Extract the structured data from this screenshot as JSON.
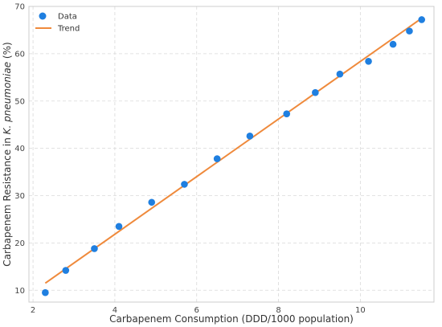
{
  "chart_data": {
    "type": "scatter",
    "xlabel": "Carbapenem Consumption (DDD/1000 population)",
    "ylabel_prefix": "Carbapenem Resistance in ",
    "ylabel_italic": "K. pneumoniae",
    "ylabel_suffix": " (%)",
    "xlim": [
      1.9,
      11.8
    ],
    "ylim": [
      7.5,
      70
    ],
    "xticks": [
      2,
      4,
      6,
      8,
      10
    ],
    "yticks": [
      10,
      20,
      30,
      40,
      50,
      60,
      70
    ],
    "grid": true,
    "legend_position": "top-left",
    "series": [
      {
        "name": "Data",
        "kind": "scatter",
        "color": "#1f7fe0",
        "x": [
          2.3,
          2.8,
          3.5,
          4.1,
          4.9,
          5.7,
          6.5,
          7.3,
          8.2,
          8.9,
          9.5,
          10.2,
          10.8,
          11.2,
          11.5
        ],
        "y": [
          9.5,
          14.2,
          18.8,
          23.5,
          28.6,
          32.4,
          37.8,
          42.6,
          47.3,
          51.8,
          55.7,
          58.4,
          62.0,
          64.8,
          67.2
        ]
      },
      {
        "name": "Trend",
        "kind": "line",
        "color": "#ef8a3c",
        "x": [
          2.3,
          11.5
        ],
        "y": [
          11.5,
          67.5
        ]
      }
    ]
  }
}
